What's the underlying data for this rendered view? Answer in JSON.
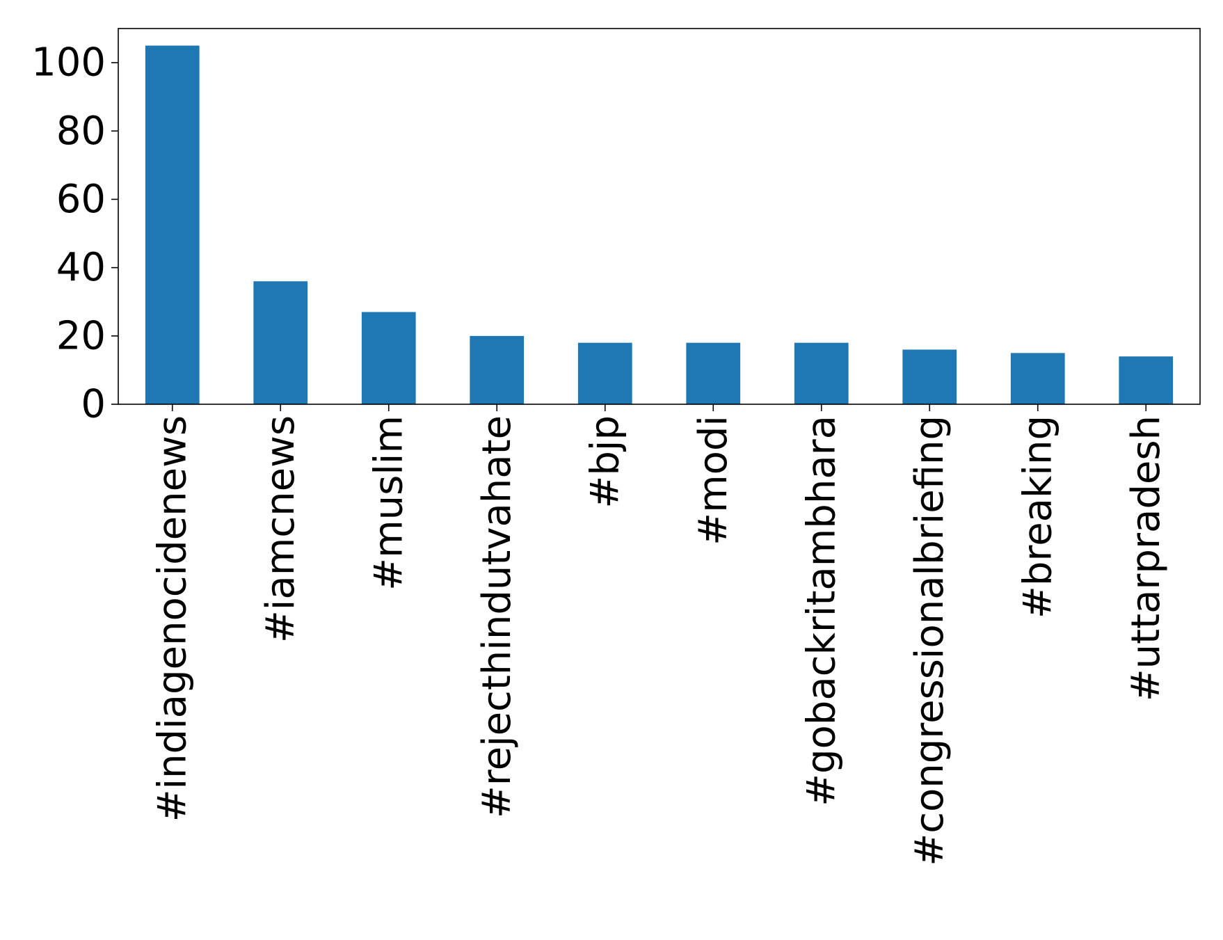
{
  "chart_data": {
    "type": "bar",
    "title": "",
    "xlabel": "",
    "ylabel": "",
    "categories": [
      "#indiagenocidenews",
      "#iamcnews",
      "#muslim",
      "#rejecthindutvahate",
      "#bjp",
      "#modi",
      "#gobackritambhara",
      "#congressionalbriefing",
      "#breaking",
      "#uttarpradesh"
    ],
    "values": [
      105,
      36,
      27,
      20,
      18,
      18,
      18,
      16,
      15,
      14
    ],
    "ylim": [
      0,
      110
    ],
    "yticks": [
      0,
      20,
      40,
      60,
      80,
      100
    ],
    "grid": false,
    "legend": "none",
    "bar_color": "#1f77b4"
  }
}
